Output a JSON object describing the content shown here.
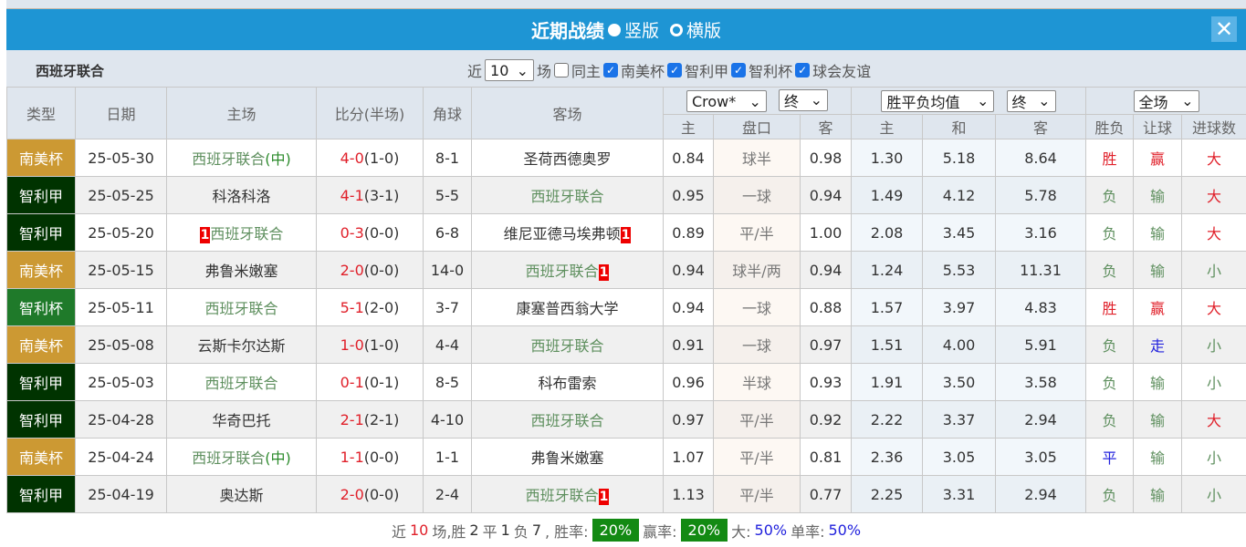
{
  "title": "近期战绩",
  "layout_options": [
    "竖版",
    "横版"
  ],
  "selected_layout": "竖版",
  "team": "西班牙联合",
  "filters": {
    "prefix": "近",
    "count": "10",
    "suffix": "场",
    "same_home": "同主",
    "same_home_checked": false,
    "competitions": [
      {
        "label": "南美杯",
        "checked": true
      },
      {
        "label": "智利甲",
        "checked": true
      },
      {
        "label": "智利杯",
        "checked": true
      },
      {
        "label": "球会友谊",
        "checked": true
      }
    ]
  },
  "headers": {
    "type": "类型",
    "date": "日期",
    "home": "主场",
    "score": "比分(半场)",
    "corner": "角球",
    "away": "客场",
    "company": "Crow*",
    "odds_time": "终",
    "odds_type": "胜平负均值",
    "odds_time2": "终",
    "scope": "全场",
    "sub": [
      "主",
      "盘口",
      "客",
      "主",
      "和",
      "客",
      "胜负",
      "让球",
      "进球数"
    ]
  },
  "colors": {
    "南美杯": "#cc9933",
    "智利甲": "#003300",
    "智利杯": "#1f7a2a",
    "title_bar": "#1e95d4"
  },
  "rows": [
    {
      "type": "南美杯",
      "date": "25-05-30",
      "home": "西班牙联合",
      "home_mark": "(中)",
      "home_rc": "",
      "score": "4-0",
      "half": "(1-0)",
      "corner": "8-1",
      "away": "圣荷西德奥罗",
      "away_rc": "",
      "o": [
        "0.84",
        "球半",
        "0.98",
        "1.30",
        "5.18",
        "8.64"
      ],
      "res": "胜",
      "hc": "赢",
      "ou": "大",
      "focus": "home"
    },
    {
      "type": "智利甲",
      "date": "25-05-25",
      "home": "科洛科洛",
      "home_mark": "",
      "home_rc": "",
      "score": "4-1",
      "half": "(3-1)",
      "corner": "5-5",
      "away": "西班牙联合",
      "away_rc": "",
      "o": [
        "0.95",
        "一球",
        "0.94",
        "1.49",
        "4.12",
        "5.78"
      ],
      "res": "负",
      "hc": "输",
      "ou": "大",
      "focus": "away"
    },
    {
      "type": "智利甲",
      "date": "25-05-20",
      "home": "西班牙联合",
      "home_mark": "",
      "home_rc": "1",
      "score": "0-3",
      "half": "(0-0)",
      "corner": "6-8",
      "away": "维尼亚德马埃弗顿",
      "away_rc": "1",
      "o": [
        "0.89",
        "平/半",
        "1.00",
        "2.08",
        "3.45",
        "3.16"
      ],
      "res": "负",
      "hc": "输",
      "ou": "大",
      "focus": "home"
    },
    {
      "type": "南美杯",
      "date": "25-05-15",
      "home": "弗鲁米嫩塞",
      "home_mark": "",
      "home_rc": "",
      "score": "2-0",
      "half": "(0-0)",
      "corner": "14-0",
      "away": "西班牙联合",
      "away_rc": "1",
      "o": [
        "0.94",
        "球半/两",
        "0.94",
        "1.24",
        "5.53",
        "11.31"
      ],
      "res": "负",
      "hc": "输",
      "ou": "小",
      "focus": "away"
    },
    {
      "type": "智利杯",
      "date": "25-05-11",
      "home": "西班牙联合",
      "home_mark": "",
      "home_rc": "",
      "score": "5-1",
      "half": "(2-0)",
      "corner": "3-7",
      "away": "康塞普西翁大学",
      "away_rc": "",
      "o": [
        "0.94",
        "一球",
        "0.88",
        "1.57",
        "3.97",
        "4.83"
      ],
      "res": "胜",
      "hc": "赢",
      "ou": "大",
      "focus": "home"
    },
    {
      "type": "南美杯",
      "date": "25-05-08",
      "home": "云斯卡尔达斯",
      "home_mark": "",
      "home_rc": "",
      "score": "1-0",
      "half": "(1-0)",
      "corner": "4-4",
      "away": "西班牙联合",
      "away_rc": "",
      "o": [
        "0.91",
        "一球",
        "0.97",
        "1.51",
        "4.00",
        "5.91"
      ],
      "res": "负",
      "hc": "走",
      "ou": "小",
      "focus": "away"
    },
    {
      "type": "智利甲",
      "date": "25-05-03",
      "home": "西班牙联合",
      "home_mark": "",
      "home_rc": "",
      "score": "0-1",
      "half": "(0-1)",
      "corner": "8-5",
      "away": "科布雷索",
      "away_rc": "",
      "o": [
        "0.96",
        "半球",
        "0.93",
        "1.91",
        "3.50",
        "3.58"
      ],
      "res": "负",
      "hc": "输",
      "ou": "小",
      "focus": "home"
    },
    {
      "type": "智利甲",
      "date": "25-04-28",
      "home": "华奇巴托",
      "home_mark": "",
      "home_rc": "",
      "score": "2-1",
      "half": "(2-1)",
      "corner": "4-10",
      "away": "西班牙联合",
      "away_rc": "",
      "o": [
        "0.97",
        "平/半",
        "0.92",
        "2.22",
        "3.37",
        "2.94"
      ],
      "res": "负",
      "hc": "输",
      "ou": "大",
      "focus": "away"
    },
    {
      "type": "南美杯",
      "date": "25-04-24",
      "home": "西班牙联合",
      "home_mark": "(中)",
      "home_rc": "",
      "score": "1-1",
      "half": "(0-0)",
      "corner": "1-1",
      "away": "弗鲁米嫩塞",
      "away_rc": "",
      "o": [
        "1.07",
        "平/半",
        "0.81",
        "2.36",
        "3.05",
        "3.05"
      ],
      "res": "平",
      "hc": "输",
      "ou": "小",
      "focus": "home"
    },
    {
      "type": "智利甲",
      "date": "25-04-19",
      "home": "奥达斯",
      "home_mark": "",
      "home_rc": "",
      "score": "2-0",
      "half": "(0-0)",
      "corner": "2-4",
      "away": "西班牙联合",
      "away_rc": "1",
      "o": [
        "1.13",
        "平/半",
        "0.77",
        "2.25",
        "3.31",
        "2.94"
      ],
      "res": "负",
      "hc": "输",
      "ou": "小",
      "focus": "away"
    }
  ],
  "summary": {
    "p1": "近",
    "n": "10",
    "p2": "场,胜",
    "w": "2",
    "p3": "平",
    "d": "1",
    "p4": "负",
    "l": "7",
    "p5": ", 胜率:",
    "win_rate": "20%",
    "p6": "赢率:",
    "hc_rate": "20%",
    "p7": "大:",
    "over_rate": "50%",
    "p8": "单率:",
    "odd_rate": "50%"
  }
}
